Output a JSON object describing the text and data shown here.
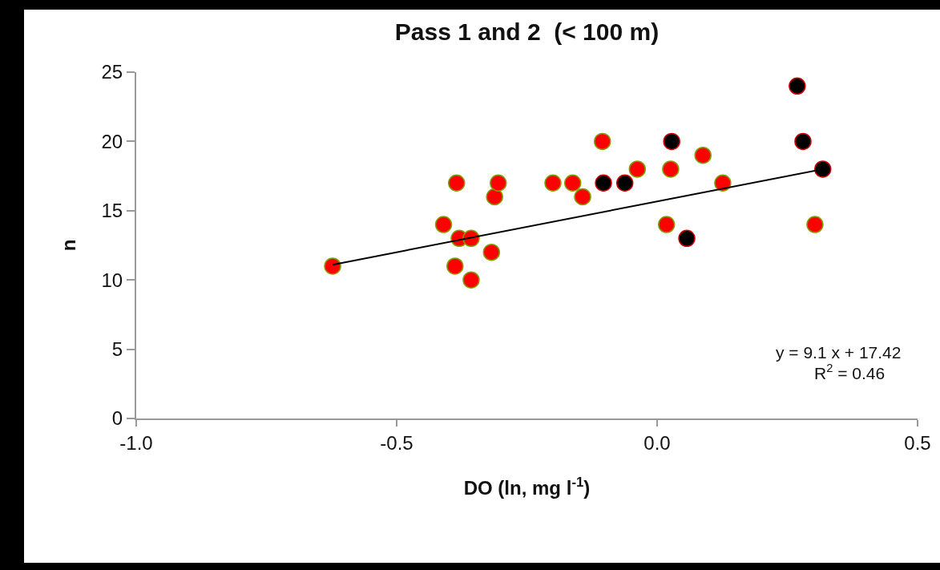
{
  "chart_data": {
    "type": "scatter",
    "title": "Pass 1 and 2  (< 100 m)",
    "xlabel": "DO (ln, mg l$^{-1}$)",
    "ylabel": "n",
    "series": [
      {
        "color": "#ff0000",
        "x": [
          -0.623,
          -0.41,
          -0.385,
          -0.38,
          -0.357,
          -0.388,
          -0.357,
          -0.318,
          -0.312,
          -0.305,
          -0.2,
          -0.162,
          -0.143,
          -0.105,
          -0.038,
          0.026,
          0.088,
          0.126,
          0.018,
          0.303
        ],
        "values": [
          11,
          14,
          17,
          13,
          13,
          11,
          10,
          12,
          16,
          17,
          17,
          17,
          16,
          20,
          18,
          18,
          19,
          17,
          14,
          14
        ]
      },
      {
        "color": "#000000",
        "x": [
          -0.103,
          -0.062,
          0.028,
          0.057,
          0.269,
          0.28,
          0.318
        ],
        "values": [
          17,
          17,
          20,
          13,
          24,
          20,
          18
        ]
      },
      {
        "type": "line",
        "color": "#000000",
        "marker": "none",
        "x": [
          -0.623,
          0.318
        ],
        "values": [
          11.1,
          18.0
        ]
      }
    ],
    "marker": "circle",
    "grid": false,
    "xlim": [
      -1.0,
      0.5
    ],
    "xticks": [
      {
        "value": -1.0,
        "label": "-1.0"
      },
      {
        "value": -0.5,
        "label": "-0.5"
      },
      {
        "value": 0,
        "label": "0.0"
      },
      {
        "value": 0.5,
        "label": "0.5"
      }
    ],
    "ylim": [
      0,
      25
    ],
    "yticks": [
      0,
      5,
      10,
      15,
      20,
      25
    ],
    "annotations": [
      "y = 9.1 x + 17.42",
      "R$^{2}$ = 0.46"
    ]
  }
}
